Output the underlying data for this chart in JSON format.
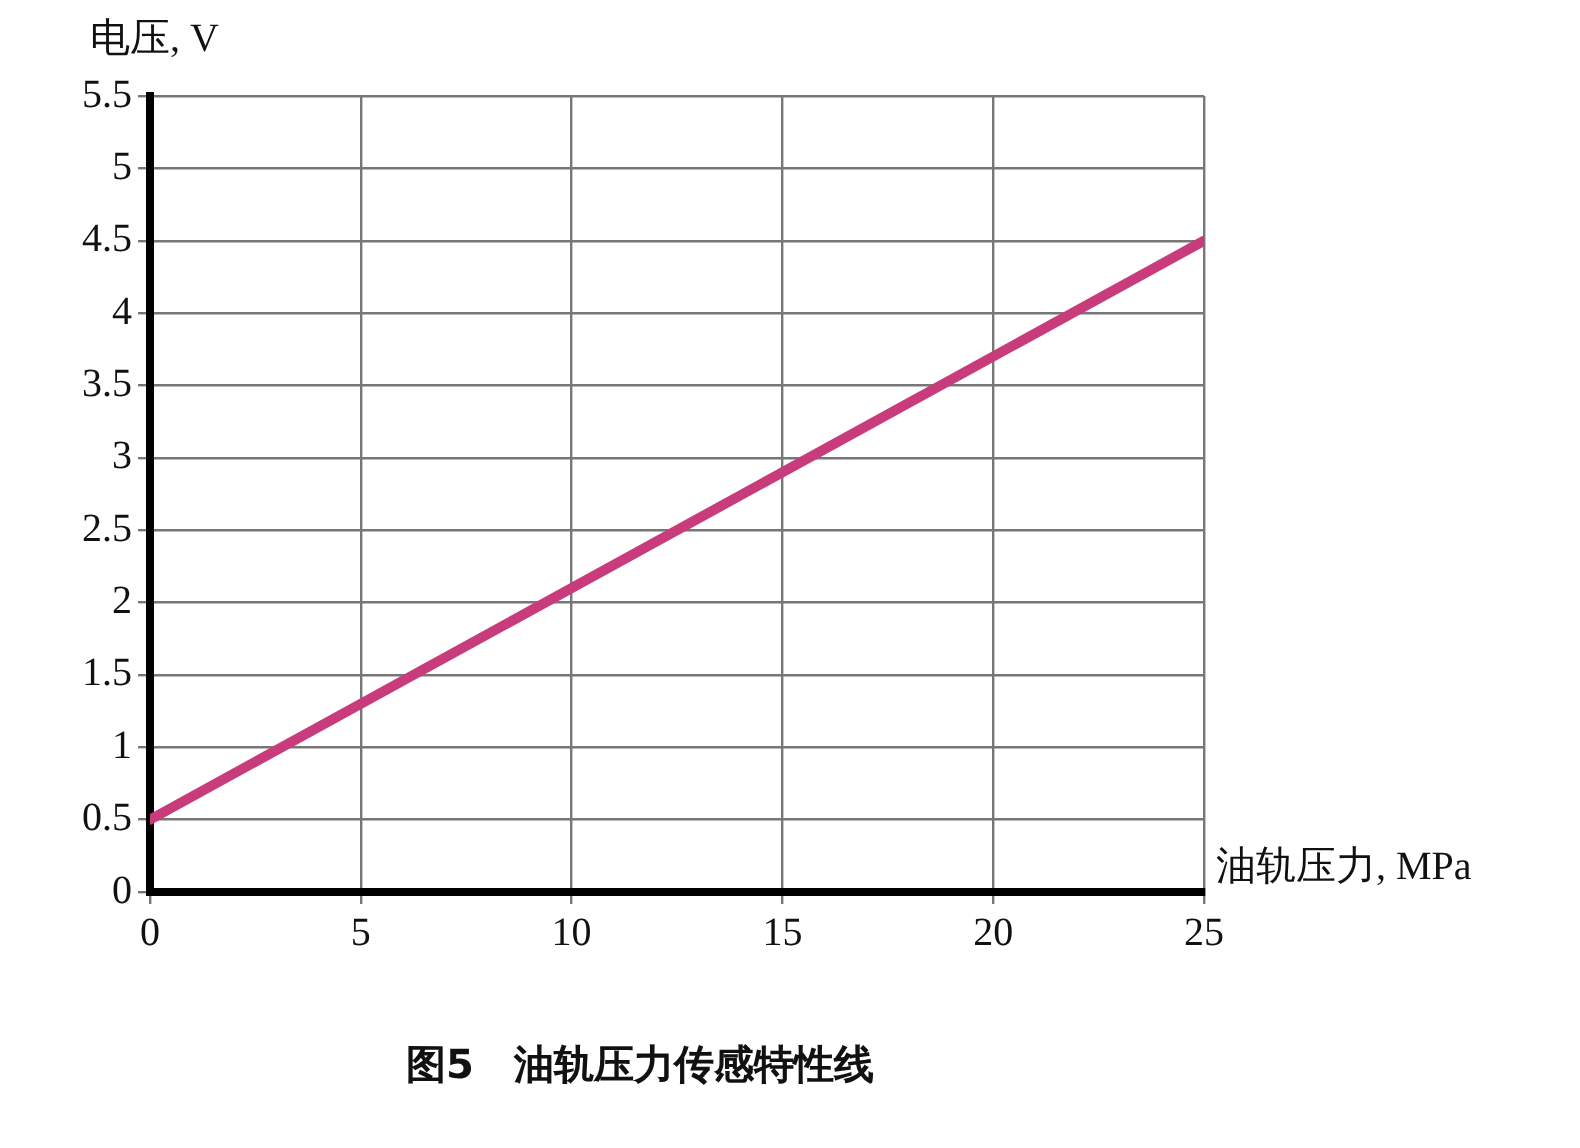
{
  "chart_data": {
    "type": "line",
    "title": "图5　油轨压力传感特性线",
    "xlabel": "油轨压力, MPa",
    "ylabel": "电压, V",
    "x": [
      0,
      25
    ],
    "series": [
      {
        "color": "#c83c7c",
        "values": [
          0.5,
          4.5
        ]
      }
    ],
    "xlim": [
      0,
      25
    ],
    "xticks": [
      0,
      5,
      10,
      15,
      20,
      25
    ],
    "ylim": [
      0,
      5.5
    ],
    "yticks": [
      0,
      0.5,
      1,
      1.5,
      2,
      2.5,
      3,
      3.5,
      4,
      4.5,
      5,
      5.5
    ],
    "grid": true,
    "legend": false,
    "marker": "none",
    "line_style": "solid"
  }
}
